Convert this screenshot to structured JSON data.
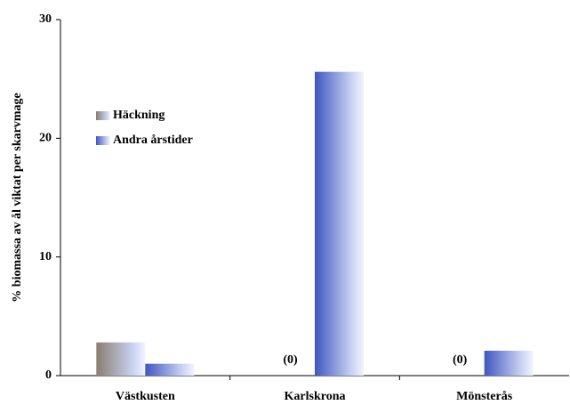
{
  "chart_data": {
    "type": "bar",
    "y_label": "% biomassa av ål viktat per skarvmage",
    "categories": [
      "Västkusten",
      "Karlskrona",
      "Mönsterås"
    ],
    "series": [
      {
        "name": "Häckning",
        "color": "#8a7d6e",
        "values": [
          2.8,
          0,
          0
        ],
        "value_labels": [
          null,
          "(0)",
          "(0)"
        ]
      },
      {
        "name": "Andra årstider",
        "color": "#3f56c0",
        "values": [
          1.0,
          25.6,
          2.1
        ]
      }
    ],
    "ylim": [
      0,
      30
    ],
    "yticks": [
      0,
      10,
      20,
      30
    ],
    "grid": false,
    "legend": "upper left"
  }
}
